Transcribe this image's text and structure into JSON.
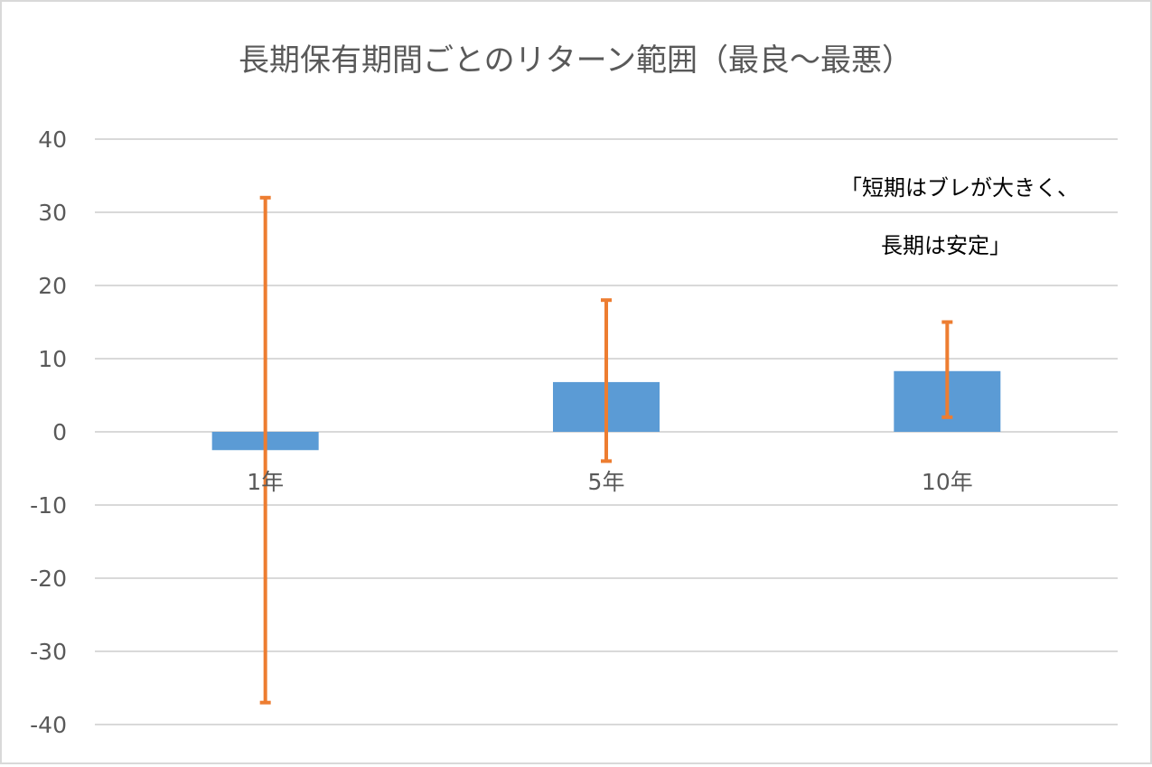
{
  "chart_data": {
    "type": "bar",
    "title": "長期保有期間ごとのリターン範囲（最良～最悪）",
    "xlabel": "",
    "ylabel": "",
    "categories": [
      "1年",
      "5年",
      "10年"
    ],
    "series": [
      {
        "values": [
          -2.5,
          6.8,
          8.3
        ],
        "range_high": [
          32,
          18,
          15
        ],
        "range_low": [
          -37,
          -4,
          2
        ]
      }
    ],
    "ylim": [
      -40,
      40
    ],
    "yticks": [
      40,
      30,
      20,
      10,
      0,
      -10,
      -20,
      -30,
      -40
    ],
    "grid": true,
    "annotation": [
      "「短期はブレが大きく、",
      "長期は安定」"
    ],
    "colors": {
      "bar": "#5b9bd5",
      "error_bar": "#ed7d31",
      "grid": "#d9d9d9",
      "text": "#595959"
    }
  }
}
